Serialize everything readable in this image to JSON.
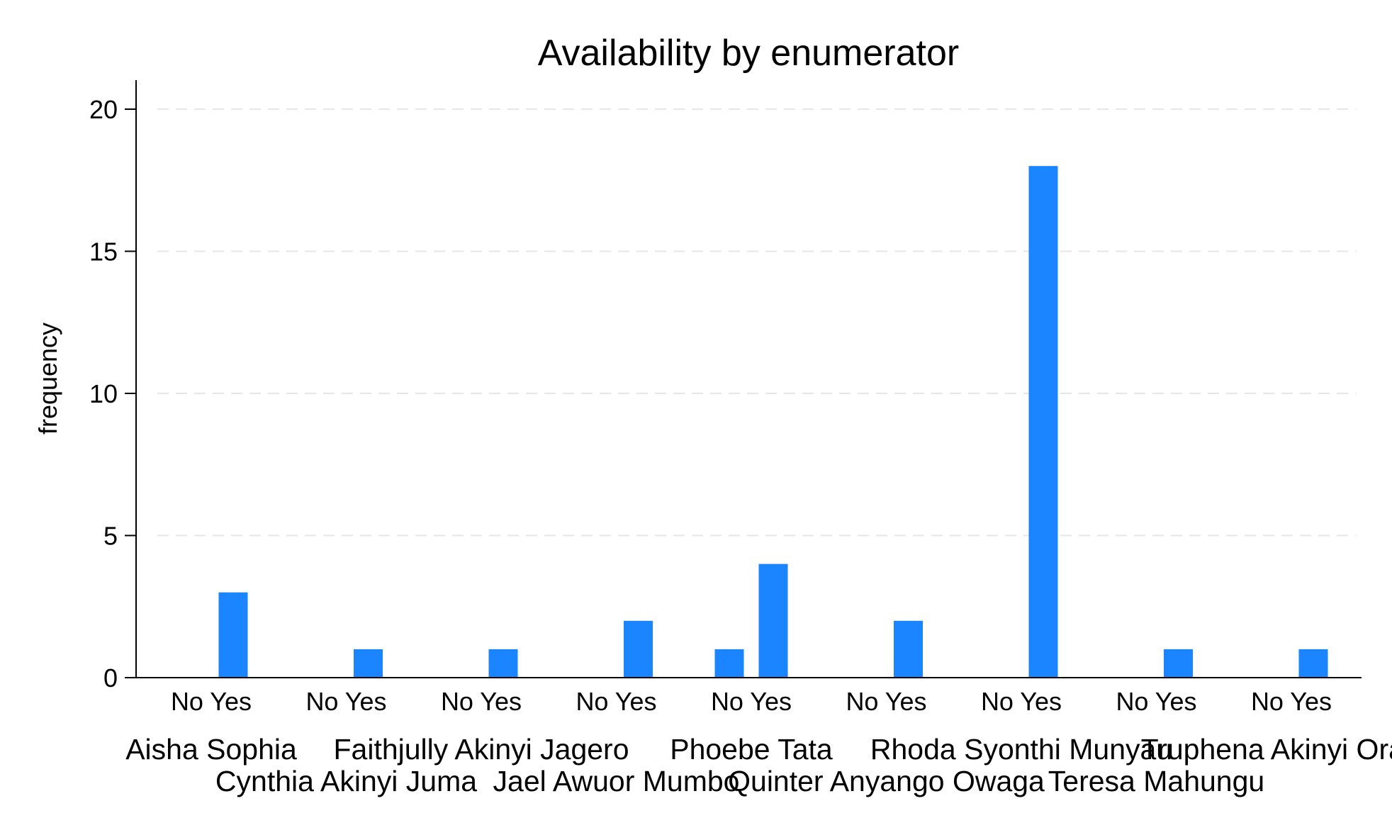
{
  "chart_data": {
    "type": "bar",
    "title": "Availability by enumerator",
    "ylabel": "frequency",
    "xlabel": "",
    "ylim": [
      0,
      21
    ],
    "yticks": [
      0,
      5,
      10,
      15,
      20
    ],
    "grid": true,
    "subcategories": [
      "No",
      "Yes"
    ],
    "groups": [
      {
        "name": "Aisha Sophia",
        "values": [
          0,
          3
        ]
      },
      {
        "name": "Cynthia Akinyi Juma",
        "values": [
          0,
          1
        ]
      },
      {
        "name": "Faithjully Akinyi Jagero",
        "values": [
          0,
          1
        ]
      },
      {
        "name": "Jael Awuor Mumbo",
        "values": [
          0,
          2
        ]
      },
      {
        "name": "Phoebe Tata",
        "values": [
          1,
          4
        ]
      },
      {
        "name": "Quinter Anyango Owaga",
        "values": [
          0,
          2
        ]
      },
      {
        "name": "Rhoda Syonthi Munyau",
        "values": [
          0,
          18
        ]
      },
      {
        "name": "Teresa Mahungu",
        "values": [
          0,
          1
        ]
      },
      {
        "name": "Truphena Akinyi Orachi",
        "values": [
          0,
          1
        ]
      }
    ],
    "colors": {
      "bar": "#1a85ff",
      "grid": "#e6e6e6",
      "axis": "#000000"
    }
  }
}
